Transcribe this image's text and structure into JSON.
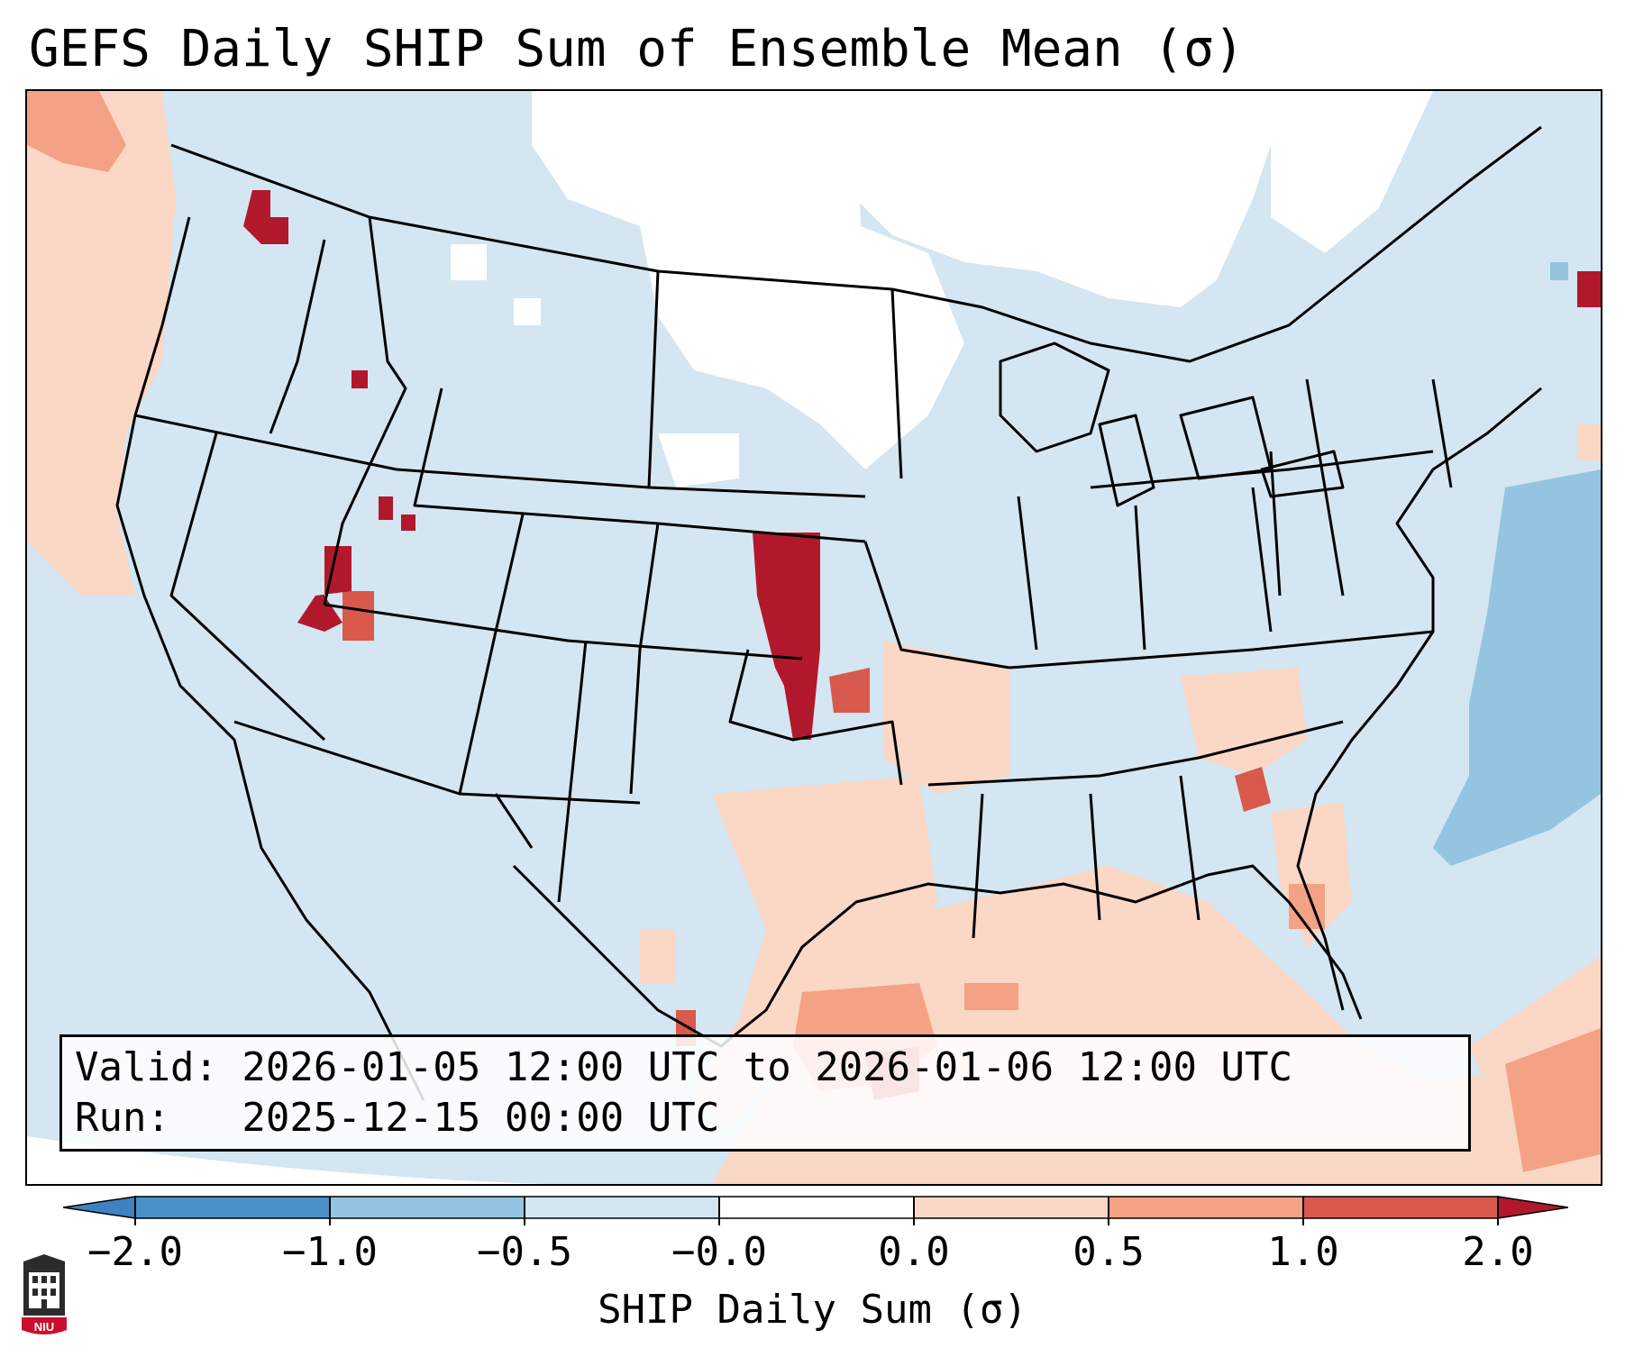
{
  "title": "GEFS Daily SHIP Sum of Ensemble Mean (σ)",
  "info": {
    "valid_line": "Valid: 2026-01-05 12:00 UTC to 2026-01-06 12:00 UTC",
    "run_line": "Run:   2025-12-15 00:00 UTC"
  },
  "colorbar": {
    "label": "SHIP Daily Sum (σ)",
    "ticks": [
      "−2.0",
      "−1.0",
      "−0.5",
      "−0.0",
      "0.0",
      "0.5",
      "1.0",
      "2.0"
    ],
    "colors": {
      "below_min": "#3f82c0",
      "neg_2_to_1": "#4a90c8",
      "neg_1_to_05": "#94c4df",
      "neg_05_to_0": "#d3e6f1",
      "zero_band": "#ffffff",
      "pos_0_to_05": "#fbd7c5",
      "pos_05_to_1": "#f3a285",
      "pos_1_to_2": "#d75a4c",
      "above_max": "#b2182b"
    }
  },
  "logo": {
    "text": "NIU",
    "icon": "university-crest-icon"
  },
  "map": {
    "projection": "lambert-conformal",
    "region": "CONUS",
    "dominant_category": "neg_05_to_0",
    "highlight_regions": [
      "Central Kansas (>2.0σ)",
      "Northern Utah / Nevada (1.0 to 2.0σ)",
      "Northwest Washington (>2.0σ)",
      "Gulf of Mexico (0.0 to 1.0σ)",
      "Western Atlantic (-1.0 to -0.5σ)",
      "Northern Plains / Upper Midwest (near 0)"
    ]
  }
}
